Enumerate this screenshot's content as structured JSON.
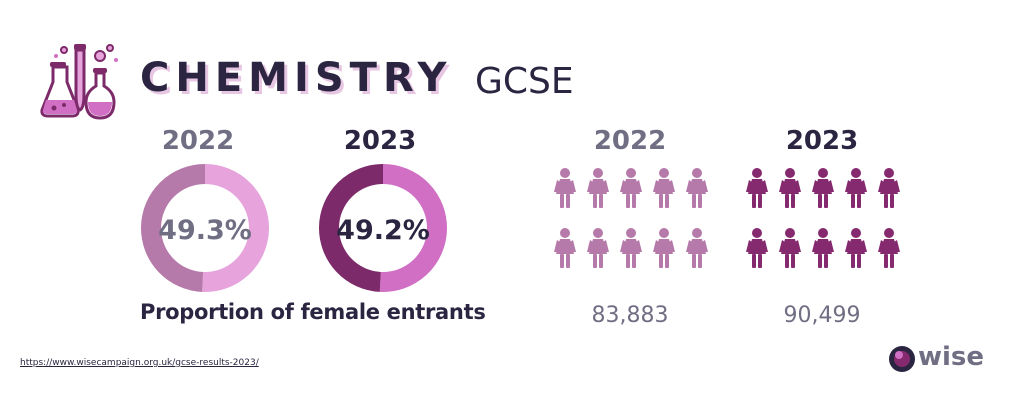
{
  "header": {
    "title": "CHEMISTRY",
    "subtitle": "GCSE",
    "logo_icon": "chemistry-flasks-icon"
  },
  "colors": {
    "dark_text": "#2b2541",
    "grey_text": "#6f6e83",
    "donut_2022_main": "#b57aa9",
    "donut_2022_rest": "#e6a3dc",
    "donut_2023_main": "#7d2a6a",
    "donut_2023_rest": "#d06fc4",
    "icon_2022": "#b57aa9",
    "icon_2023": "#862a6f"
  },
  "chart_data": [
    {
      "type": "pie",
      "title": "",
      "caption": "Proportion of female entrants",
      "donuts": [
        {
          "year": "2022",
          "value": 49.3,
          "label": "49.3%"
        },
        {
          "year": "2023",
          "value": 49.2,
          "label": "49.2%"
        }
      ]
    },
    {
      "type": "table",
      "categories": [
        "2022",
        "2023"
      ],
      "values": [
        83883,
        90499
      ],
      "labels": [
        "83,883",
        "90,499"
      ],
      "icon": "female-person-icon",
      "icons_per_group": 10
    }
  ],
  "footer": {
    "source_url": "https://www.wisecampaign.org.uk/gcse-results-2023/",
    "brand": "wise"
  }
}
